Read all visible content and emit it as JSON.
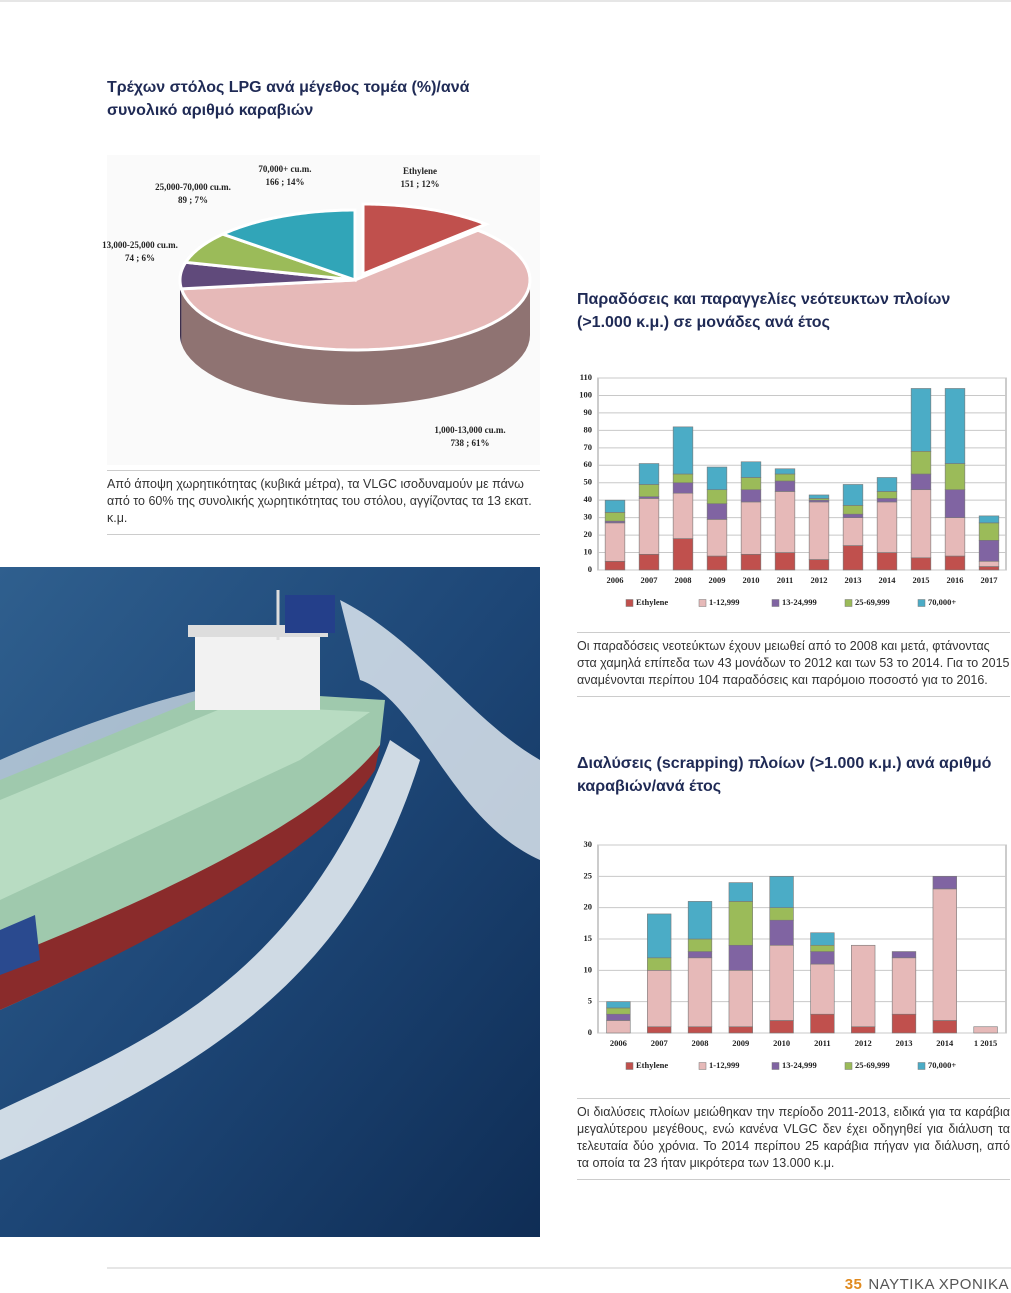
{
  "page": {
    "captions": [
      "Από άποψη χωρητικότητας (κυβικά μέτρα), τα VLGC ισοδυναμούν με πάνω από το 60% της συνολικής χωρητικότητας του στόλου, αγγίζοντας τα 13 εκατ. κ.μ.",
      "Οι παραδόσεις νεοτεύκτων έχουν μειωθεί από το 2008 και μετά, φτάνοντας στα χαμηλά επίπεδα των 43 μονάδων το 2012 και των 53 το 2014. Για το 2015 αναμένονται περίπου 104 παραδόσεις και παρόμοιο ποσοστό για το 2016.",
      "Οι διαλύσεις πλοίων μειώθηκαν την περίοδο 2011-2013, ειδικά για τα καράβια μεγαλύτερου μεγέθους, ενώ κανένα VLGC δεν έχει οδηγηθεί για διάλυση τα τελευταία δύο χρόνια. Το 2014 περίπου 25 καράβια πήγαν για διάλυση, από τα οποία τα 23 ήταν μικρότερα των 13.000 κ.μ."
    ],
    "page_number": "35",
    "magazine": "ΝΑΥΤΙΚΑ ΧΡΟΝΙΚΑ"
  },
  "chart_data": [
    {
      "type": "pie",
      "title": "Τρέχων στόλος LPG ανά μέγεθος τομέα (%)/ανά συνολικό αριθμό καραβιών",
      "categories": [
        "Ethylene",
        "1,000-13,000 cu.m.",
        "13,000-25,000 cu.m.",
        "25,000-70,000 cu.m.",
        "70,000+ cu.m."
      ],
      "values": [
        151,
        738,
        74,
        89,
        166
      ],
      "value_labels": [
        "151 ; 12%",
        "738 ; 61%",
        "74 ; 6%",
        "89 ; 7%",
        "166 ; 14%"
      ],
      "colors": [
        "#c0504d",
        "#e6b9b8",
        "#604a7b",
        "#9bbb59",
        "#31a5b8"
      ]
    },
    {
      "type": "stacked_bar",
      "title": "Παραδόσεις και παραγγελίες νεότευκτων πλοίων (>1.000 κ.μ.) σε μονάδες ανά έτος",
      "categories": [
        "2006",
        "2007",
        "2008",
        "2009",
        "2010",
        "2011",
        "2012",
        "2013",
        "2014",
        "2015",
        "2016",
        "2017"
      ],
      "series": [
        {
          "name": "Ethylene",
          "color": "#c0504d",
          "values": [
            5,
            9,
            18,
            8,
            9,
            10,
            6,
            14,
            10,
            7,
            8,
            2
          ]
        },
        {
          "name": "1-12,999",
          "color": "#e6b9b8",
          "values": [
            22,
            32,
            26,
            21,
            30,
            35,
            33,
            16,
            29,
            39,
            22,
            3
          ]
        },
        {
          "name": "13-24,999",
          "color": "#8064a2",
          "values": [
            1,
            1,
            6,
            9,
            7,
            6,
            1,
            2,
            2,
            9,
            16,
            12
          ]
        },
        {
          "name": "25-69,999",
          "color": "#9bbb59",
          "values": [
            5,
            7,
            5,
            8,
            7,
            4,
            1,
            5,
            4,
            13,
            15,
            10
          ]
        },
        {
          "name": "70,000+",
          "color": "#4bacc6",
          "values": [
            7,
            12,
            27,
            13,
            9,
            3,
            2,
            12,
            8,
            36,
            43,
            4
          ]
        }
      ],
      "ylim": [
        0,
        110
      ],
      "yticks": [
        0,
        10,
        20,
        30,
        40,
        50,
        60,
        70,
        80,
        90,
        100,
        110
      ],
      "grid": true
    },
    {
      "type": "stacked_bar",
      "title": "Διαλύσεις (scrapping) πλοίων (>1.000 κ.μ.) ανά αριθμό καραβιών/ανά έτος",
      "categories": [
        "2006",
        "2007",
        "2008",
        "2009",
        "2010",
        "2011",
        "2012",
        "2013",
        "2014",
        "1 2015"
      ],
      "series": [
        {
          "name": "Ethylene",
          "color": "#c0504d",
          "values": [
            0,
            1,
            1,
            1,
            2,
            3,
            1,
            3,
            2,
            0
          ]
        },
        {
          "name": "1-12,999",
          "color": "#e6b9b8",
          "values": [
            2,
            9,
            11,
            9,
            12,
            8,
            13,
            9,
            21,
            1
          ]
        },
        {
          "name": "13-24,999",
          "color": "#8064a2",
          "values": [
            1,
            0,
            1,
            4,
            4,
            2,
            0,
            1,
            2,
            0
          ]
        },
        {
          "name": "25-69,999",
          "color": "#9bbb59",
          "values": [
            1,
            2,
            2,
            7,
            2,
            1,
            0,
            0,
            0,
            0
          ]
        },
        {
          "name": "70,000+",
          "color": "#4bacc6",
          "values": [
            1,
            7,
            6,
            3,
            5,
            2,
            0,
            0,
            0,
            0
          ]
        }
      ],
      "ylim": [
        0,
        30
      ],
      "yticks": [
        0,
        5,
        10,
        15,
        20,
        25,
        30
      ],
      "grid": true
    }
  ]
}
